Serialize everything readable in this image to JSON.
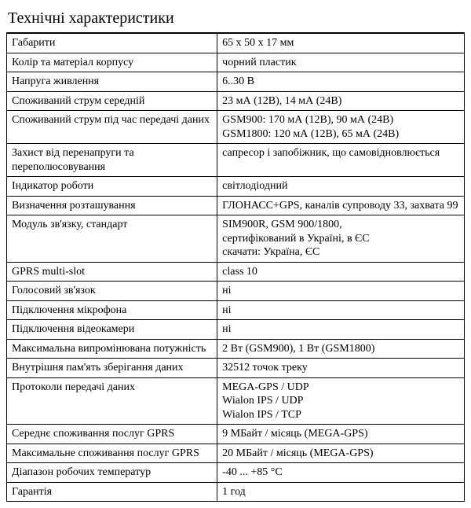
{
  "title": "Технічні характеристики",
  "rows": [
    {
      "label": "Габарити",
      "value": "65 x 50 x 17 мм"
    },
    {
      "label": "Колір та матеріал корпусу",
      "value": "чорний пластик"
    },
    {
      "label": "Напруга живлення",
      "value": "6..30 В"
    },
    {
      "label": "Споживаний струм середній",
      "value": "23 мА (12В), 14 мА (24В)"
    },
    {
      "label": "Споживаний струм під час передачі даних",
      "value_lines": [
        "GSM900: 170 мА (12В), 90 мА (24В)",
        "GSM1800: 120 мА (12В), 65 мА (24В)"
      ]
    },
    {
      "label": "Захист від перенапруги та переполюсовування",
      "value": "сапресор і запобіжник, що самовідновлюється"
    },
    {
      "label": "Індикатор роботи",
      "value": "світлодіодний"
    },
    {
      "label": "Визначення розташування",
      "value": "ГЛОНАСС+GPS, каналів супроводу 33, захвата 99"
    },
    {
      "label": "Модуль зв'язку, стандарт",
      "value_lines": [
        "SIM900R, GSM 900/1800,",
        "сертифікований в Україні, в ЄС",
        "скачати: Україна, ЄС"
      ]
    },
    {
      "label": "GPRS multi-slot",
      "value": "class 10"
    },
    {
      "label": "Голосовий зв'язок",
      "value": "ні"
    },
    {
      "label": "Підключення мікрофона",
      "value": "ні"
    },
    {
      "label": "Підключення відеокамери",
      "value": "ні"
    },
    {
      "label": "Максимальна випромінювана потужність",
      "value": "2 Вт (GSM900), 1 Вт (GSM1800)"
    },
    {
      "label": "Внутрішня пам'ять зберігання даних",
      "value": "32512 точок треку"
    },
    {
      "label": "Протоколи передачі даних",
      "value_lines": [
        "MEGA-GPS / UDP",
        "Wialon IPS / UDP",
        "Wialon IPS / TCP"
      ]
    },
    {
      "label": "Середнє споживання послуг GPRS",
      "value": "9 МБайт / місяць (MEGA-GPS)"
    },
    {
      "label": "Максимальне споживання послуг GPRS",
      "value": "20 МБайт / місяць (MEGA-GPS)"
    },
    {
      "label": "Діапазон робочих температур",
      "value": "-40 ... +85 °С"
    },
    {
      "label": "Гарантія",
      "value": "1 год"
    }
  ],
  "style": {
    "title_fontsize_pt": 18,
    "body_fontsize_pt": 11,
    "border_color": "#000000",
    "background_color": "#ffffff",
    "text_color": "#000000",
    "col1_width_pct": 46,
    "col2_width_pct": 54
  }
}
